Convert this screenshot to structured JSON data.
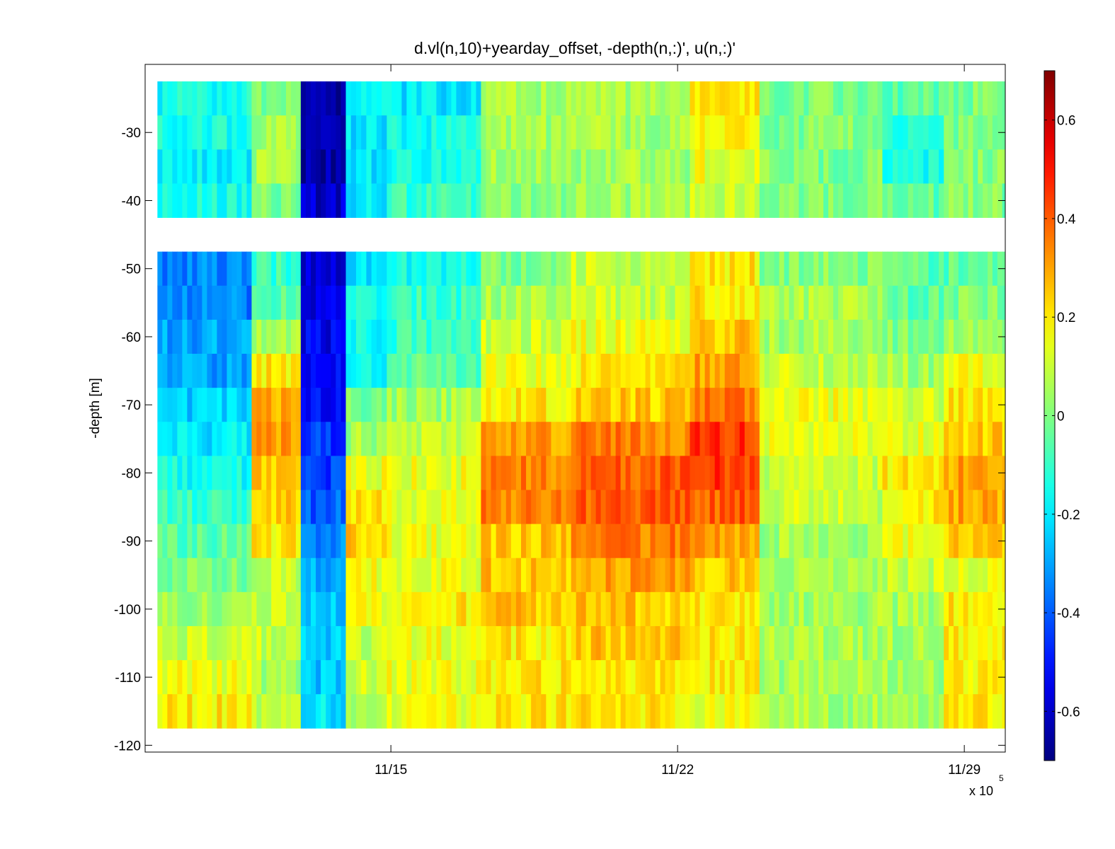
{
  "chart_data": {
    "type": "heatmap",
    "title": "d.vl(n,10)+yearday_offset, -depth(n,:)', u(n,:)'",
    "xlabel": "",
    "ylabel": "-depth [m]",
    "x_ticks": [
      "11/15",
      "11/22",
      "11/29"
    ],
    "x_exponent_label": "x 10",
    "x_exponent_power": "5",
    "x_range": [
      "11/09",
      "11/30"
    ],
    "y_ticks": [
      -30,
      -40,
      -50,
      -60,
      -70,
      -80,
      -90,
      -100,
      -110,
      -120
    ],
    "ylim": [
      -121,
      -20
    ],
    "colorbar": {
      "colormap": "jet",
      "clim": [
        -0.7,
        0.7
      ],
      "ticks": [
        "0.6",
        "0.4",
        "0.2",
        "0",
        "-0.2",
        "-0.4",
        "-0.6"
      ],
      "tick_values": [
        0.6,
        0.4,
        0.2,
        0,
        -0.2,
        -0.4,
        -0.6
      ]
    },
    "grid": false,
    "depth_bins": [
      -25,
      -30,
      -35,
      -40,
      -50,
      -55,
      -60,
      -65,
      -70,
      -75,
      -80,
      -85,
      -90,
      -95,
      -100,
      -105,
      -110,
      -115
    ],
    "data_gaps": [
      {
        "description": "no data band",
        "depth_range": [
          -45,
          -41
        ]
      }
    ],
    "time_segments": [
      {
        "start": "11/09.3",
        "end": "11/11.6",
        "u_profile": [
          -0.15,
          -0.15,
          -0.2,
          -0.15,
          -0.35,
          -0.35,
          -0.3,
          -0.3,
          -0.25,
          -0.2,
          -0.15,
          -0.1,
          -0.05,
          0.0,
          0.05,
          0.1,
          0.15,
          0.2
        ]
      },
      {
        "start": "11/11.6",
        "end": "11/12.8",
        "u_profile": [
          0.0,
          0.05,
          0.05,
          0.0,
          -0.1,
          -0.05,
          0.05,
          0.2,
          0.3,
          0.3,
          0.25,
          0.25,
          0.2,
          0.1,
          0.1,
          0.1,
          0.05,
          0.1
        ]
      },
      {
        "start": "11/12.8",
        "end": "11/13.9",
        "u_profile": [
          -0.65,
          -0.65,
          -0.65,
          -0.6,
          -0.6,
          -0.55,
          -0.55,
          -0.5,
          -0.5,
          -0.45,
          -0.45,
          -0.4,
          -0.35,
          -0.3,
          -0.25,
          -0.25,
          -0.25,
          -0.2
        ]
      },
      {
        "start": "11/13.9",
        "end": "11/14.9",
        "u_profile": [
          -0.2,
          -0.2,
          -0.2,
          -0.2,
          -0.2,
          -0.15,
          -0.15,
          -0.15,
          0.0,
          0.05,
          0.15,
          0.2,
          0.25,
          0.15,
          0.15,
          0.1,
          0.1,
          0.05
        ]
      },
      {
        "start": "11/14.9",
        "end": "11/17.2",
        "u_profile": [
          -0.2,
          -0.15,
          -0.15,
          -0.1,
          -0.15,
          -0.1,
          -0.1,
          -0.05,
          0.05,
          0.1,
          0.15,
          0.15,
          0.15,
          0.15,
          0.2,
          0.15,
          0.15,
          0.15
        ]
      },
      {
        "start": "11/17.2",
        "end": "11/19.4",
        "u_profile": [
          0.05,
          0.05,
          0.05,
          0.0,
          0.0,
          0.05,
          0.1,
          0.15,
          0.2,
          0.3,
          0.35,
          0.35,
          0.25,
          0.25,
          0.25,
          0.2,
          0.2,
          0.2
        ]
      },
      {
        "start": "11/19.4",
        "end": "11/22.3",
        "u_profile": [
          0.05,
          0.05,
          0.05,
          0.05,
          0.1,
          0.1,
          0.15,
          0.2,
          0.25,
          0.35,
          0.4,
          0.4,
          0.35,
          0.3,
          0.25,
          0.25,
          0.2,
          0.2
        ]
      },
      {
        "start": "11/22.3",
        "end": "11/24.0",
        "u_profile": [
          0.2,
          0.2,
          0.15,
          0.1,
          0.2,
          0.2,
          0.25,
          0.3,
          0.35,
          0.45,
          0.45,
          0.4,
          0.3,
          0.25,
          0.2,
          0.2,
          0.2,
          0.15
        ]
      },
      {
        "start": "11/24.0",
        "end": "11/27.0",
        "u_profile": [
          0.0,
          0.0,
          0.0,
          0.0,
          0.0,
          0.05,
          0.05,
          0.1,
          0.15,
          0.15,
          0.1,
          0.1,
          0.05,
          0.05,
          0.05,
          0.05,
          0.05,
          0.05
        ]
      },
      {
        "start": "11/27.0",
        "end": "11/28.5",
        "u_profile": [
          -0.05,
          -0.1,
          -0.15,
          -0.05,
          -0.05,
          -0.05,
          0.0,
          0.05,
          0.1,
          0.15,
          0.2,
          0.2,
          0.15,
          0.1,
          0.05,
          0.05,
          0.05,
          0.05
        ]
      },
      {
        "start": "11/28.5",
        "end": "11/30.4",
        "u_profile": [
          0.0,
          0.0,
          0.0,
          0.0,
          -0.05,
          0.0,
          0.05,
          0.15,
          0.2,
          0.25,
          0.3,
          0.3,
          0.25,
          0.15,
          0.2,
          0.2,
          0.2,
          0.2
        ]
      }
    ]
  }
}
